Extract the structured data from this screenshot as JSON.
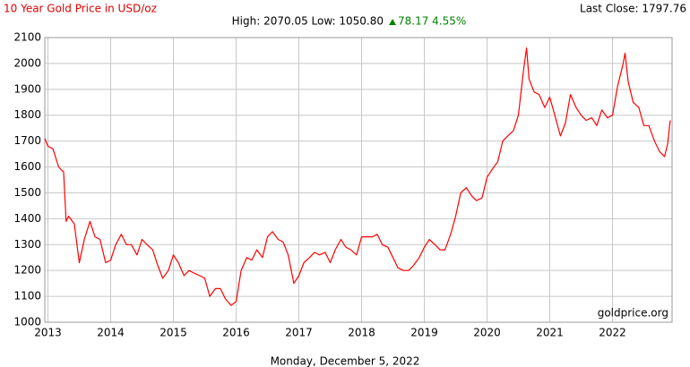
{
  "chart_data": {
    "type": "line",
    "title": "10 Year Gold Price in USD/oz",
    "last_close": "Last Close: 1797.76",
    "stats": "High: 2070.05 Low: 1050.80",
    "change": "78.17 4.55%",
    "watermark": "goldprice.org",
    "date_label": "Monday, December 5, 2022",
    "color": "#ff0000",
    "grid": true,
    "xlim": [
      2012.95,
      2022.95
    ],
    "xticks": [
      2013,
      2014,
      2015,
      2016,
      2017,
      2018,
      2019,
      2020,
      2021,
      2022
    ],
    "ylim": [
      1000,
      2100
    ],
    "yticks": [
      1000,
      1100,
      1200,
      1300,
      1400,
      1500,
      1600,
      1700,
      1800,
      1900,
      2000,
      2100
    ],
    "x": [
      2012.95,
      2013.0,
      2013.08,
      2013.17,
      2013.25,
      2013.29,
      2013.33,
      2013.42,
      2013.5,
      2013.58,
      2013.67,
      2013.75,
      2013.83,
      2013.92,
      2014.0,
      2014.08,
      2014.17,
      2014.25,
      2014.33,
      2014.42,
      2014.5,
      2014.58,
      2014.67,
      2014.75,
      2014.83,
      2014.92,
      2015.0,
      2015.08,
      2015.17,
      2015.25,
      2015.33,
      2015.42,
      2015.5,
      2015.58,
      2015.67,
      2015.75,
      2015.83,
      2015.92,
      2016.0,
      2016.08,
      2016.17,
      2016.25,
      2016.33,
      2016.42,
      2016.5,
      2016.58,
      2016.67,
      2016.75,
      2016.83,
      2016.92,
      2017.0,
      2017.08,
      2017.17,
      2017.25,
      2017.33,
      2017.42,
      2017.5,
      2017.58,
      2017.67,
      2017.75,
      2017.83,
      2017.92,
      2018.0,
      2018.08,
      2018.17,
      2018.25,
      2018.33,
      2018.42,
      2018.5,
      2018.58,
      2018.67,
      2018.75,
      2018.83,
      2018.92,
      2019.0,
      2019.08,
      2019.17,
      2019.25,
      2019.33,
      2019.42,
      2019.5,
      2019.58,
      2019.67,
      2019.75,
      2019.83,
      2019.92,
      2020.0,
      2020.08,
      2020.17,
      2020.25,
      2020.33,
      2020.42,
      2020.5,
      2020.58,
      2020.63,
      2020.67,
      2020.75,
      2020.83,
      2020.92,
      2021.0,
      2021.08,
      2021.17,
      2021.25,
      2021.33,
      2021.42,
      2021.5,
      2021.58,
      2021.67,
      2021.75,
      2021.83,
      2021.92,
      2022.0,
      2022.08,
      2022.17,
      2022.2,
      2022.25,
      2022.33,
      2022.42,
      2022.5,
      2022.58,
      2022.67,
      2022.75,
      2022.83,
      2022.88,
      2022.92
    ],
    "values": [
      1710,
      1680,
      1670,
      1600,
      1580,
      1390,
      1410,
      1380,
      1230,
      1320,
      1390,
      1330,
      1320,
      1230,
      1240,
      1300,
      1340,
      1300,
      1300,
      1260,
      1320,
      1300,
      1280,
      1220,
      1170,
      1200,
      1260,
      1230,
      1180,
      1200,
      1190,
      1180,
      1170,
      1100,
      1130,
      1130,
      1090,
      1065,
      1080,
      1200,
      1250,
      1240,
      1280,
      1250,
      1330,
      1350,
      1320,
      1310,
      1260,
      1150,
      1180,
      1230,
      1250,
      1270,
      1260,
      1270,
      1230,
      1280,
      1320,
      1290,
      1280,
      1260,
      1330,
      1330,
      1330,
      1340,
      1300,
      1290,
      1250,
      1210,
      1200,
      1200,
      1220,
      1250,
      1290,
      1320,
      1300,
      1280,
      1280,
      1340,
      1410,
      1500,
      1520,
      1490,
      1470,
      1480,
      1560,
      1590,
      1620,
      1700,
      1720,
      1740,
      1800,
      1970,
      2060,
      1940,
      1890,
      1880,
      1830,
      1870,
      1800,
      1720,
      1770,
      1880,
      1830,
      1800,
      1780,
      1790,
      1760,
      1820,
      1790,
      1800,
      1910,
      2000,
      2040,
      1930,
      1850,
      1830,
      1760,
      1760,
      1700,
      1660,
      1640,
      1690,
      1780
    ]
  }
}
